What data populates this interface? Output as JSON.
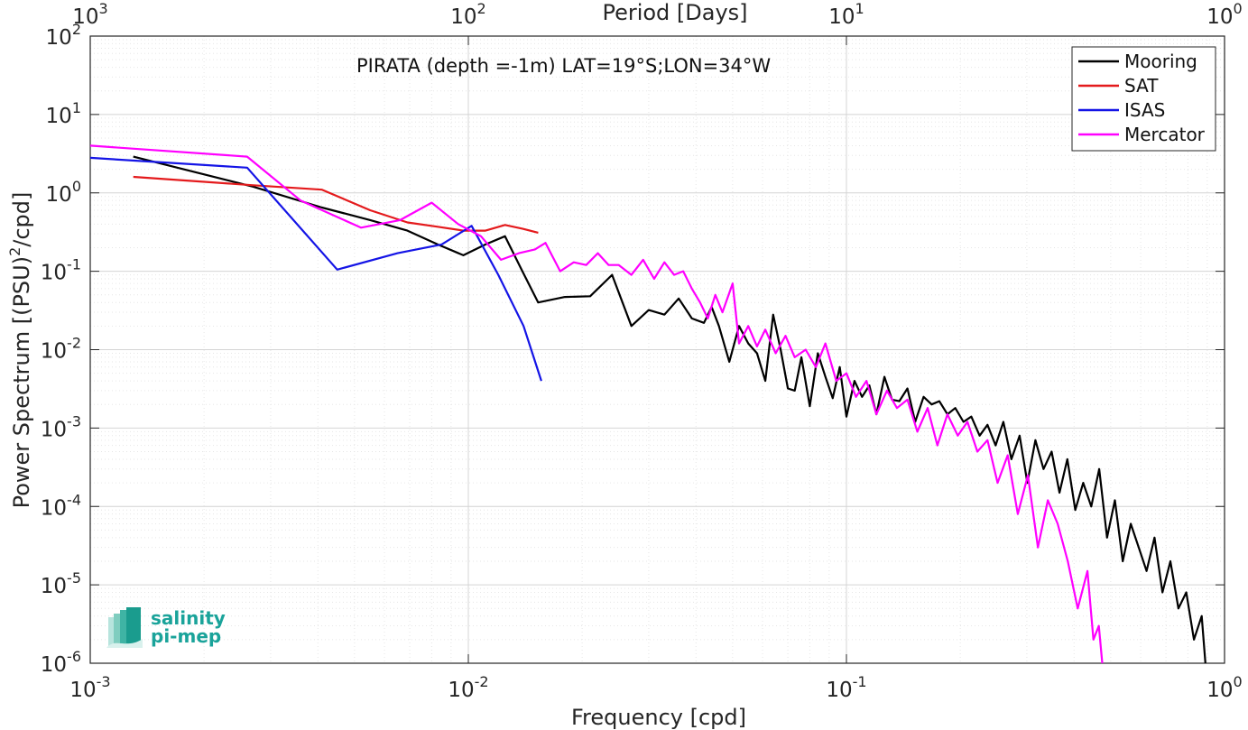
{
  "chart_data": {
    "type": "line",
    "title": "PIRATA (depth =-1m) LAT=19°S;LON=34°W",
    "xlabel": "Frequency [cpd]",
    "ylabel": "Power Spectrum [(PSU)^2/cpd]",
    "top_xlabel": "Period [Days]",
    "xscale": "log",
    "yscale": "log",
    "xlim": [
      0.001,
      1
    ],
    "ylim": [
      1e-06,
      100
    ],
    "grid": true,
    "legend_position": "top-right",
    "x_ticks": [
      {
        "value": 0.001,
        "base": "10",
        "exp": "-3"
      },
      {
        "value": 0.01,
        "base": "10",
        "exp": "-2"
      },
      {
        "value": 0.1,
        "base": "10",
        "exp": "-1"
      },
      {
        "value": 1,
        "base": "10",
        "exp": "0"
      }
    ],
    "top_ticks": [
      {
        "freq": 0.001,
        "base": "10",
        "exp": "3"
      },
      {
        "freq": 0.01,
        "base": "10",
        "exp": "2"
      },
      {
        "freq": 0.1,
        "base": "10",
        "exp": "1"
      },
      {
        "freq": 1,
        "base": "10",
        "exp": "0"
      }
    ],
    "y_ticks": [
      {
        "value": 100,
        "base": "10",
        "exp": "2"
      },
      {
        "value": 10,
        "base": "10",
        "exp": "1"
      },
      {
        "value": 1,
        "base": "10",
        "exp": "0"
      },
      {
        "value": 0.1,
        "base": "10",
        "exp": "-1"
      },
      {
        "value": 0.01,
        "base": "10",
        "exp": "-2"
      },
      {
        "value": 0.001,
        "base": "10",
        "exp": "-3"
      },
      {
        "value": 0.0001,
        "base": "10",
        "exp": "-4"
      },
      {
        "value": 1e-05,
        "base": "10",
        "exp": "-5"
      },
      {
        "value": 1e-06,
        "base": "10",
        "exp": "-6"
      }
    ],
    "series": [
      {
        "name": "Mooring",
        "color": "#000000",
        "x": [
          0.0013,
          0.0027,
          0.0041,
          0.0055,
          0.0069,
          0.0083,
          0.0097,
          0.0111,
          0.0125,
          0.0139,
          0.0153,
          0.018,
          0.021,
          0.024,
          0.027,
          0.03,
          0.033,
          0.036,
          0.039,
          0.042,
          0.044,
          0.046,
          0.049,
          0.052,
          0.055,
          0.058,
          0.061,
          0.064,
          0.067,
          0.07,
          0.073,
          0.076,
          0.08,
          0.084,
          0.088,
          0.092,
          0.096,
          0.1,
          0.105,
          0.11,
          0.115,
          0.12,
          0.126,
          0.132,
          0.138,
          0.145,
          0.152,
          0.16,
          0.168,
          0.176,
          0.185,
          0.194,
          0.204,
          0.214,
          0.225,
          0.236,
          0.248,
          0.26,
          0.273,
          0.287,
          0.301,
          0.316,
          0.332,
          0.349,
          0.366,
          0.384,
          0.403,
          0.423,
          0.444,
          0.466,
          0.489,
          0.513,
          0.538,
          0.565,
          0.593,
          0.622,
          0.653,
          0.685,
          0.719,
          0.755,
          0.792,
          0.83,
          0.87,
          0.89
        ],
        "y": [
          2.9,
          1.2,
          0.65,
          0.45,
          0.33,
          0.22,
          0.16,
          0.22,
          0.28,
          0.1,
          0.04,
          0.047,
          0.048,
          0.09,
          0.02,
          0.032,
          0.028,
          0.045,
          0.025,
          0.022,
          0.035,
          0.02,
          0.007,
          0.02,
          0.012,
          0.009,
          0.004,
          0.028,
          0.01,
          0.0032,
          0.003,
          0.008,
          0.0019,
          0.009,
          0.0045,
          0.0024,
          0.006,
          0.0014,
          0.004,
          0.0025,
          0.0035,
          0.0015,
          0.0045,
          0.0023,
          0.0022,
          0.0032,
          0.0012,
          0.0025,
          0.002,
          0.0022,
          0.0015,
          0.0018,
          0.0012,
          0.0014,
          0.0008,
          0.0011,
          0.0006,
          0.0012,
          0.0004,
          0.0008,
          0.0002,
          0.0007,
          0.0003,
          0.0005,
          0.00015,
          0.0004,
          9e-05,
          0.0002,
          0.0001,
          0.0003,
          4e-05,
          0.00012,
          2e-05,
          6e-05,
          3e-05,
          1.5e-05,
          4e-05,
          8e-06,
          2e-05,
          5e-06,
          8e-06,
          2e-06,
          4e-06,
          1e-06
        ]
      },
      {
        "name": "SAT",
        "color": "#e41a1c",
        "x": [
          0.0013,
          0.0027,
          0.0041,
          0.0055,
          0.0069,
          0.0083,
          0.0097,
          0.0111,
          0.0125,
          0.0139,
          0.0153
        ],
        "y": [
          1.6,
          1.25,
          1.1,
          0.6,
          0.42,
          0.37,
          0.33,
          0.33,
          0.39,
          0.35,
          0.31
        ]
      },
      {
        "name": "ISAS",
        "color": "#1414e6",
        "x": [
          0.001,
          0.0026,
          0.0045,
          0.0065,
          0.0085,
          0.0102,
          0.012,
          0.014,
          0.0156
        ],
        "y": [
          2.8,
          2.1,
          0.105,
          0.17,
          0.22,
          0.38,
          0.09,
          0.02,
          0.004
        ]
      },
      {
        "name": "Mercator",
        "color": "#ff00ff",
        "x": [
          0.001,
          0.0026,
          0.0036,
          0.0052,
          0.0066,
          0.008,
          0.0094,
          0.0108,
          0.0122,
          0.0136,
          0.015,
          0.016,
          0.0175,
          0.019,
          0.0205,
          0.022,
          0.0235,
          0.025,
          0.027,
          0.029,
          0.031,
          0.033,
          0.035,
          0.037,
          0.039,
          0.041,
          0.043,
          0.045,
          0.047,
          0.05,
          0.052,
          0.055,
          0.058,
          0.061,
          0.065,
          0.069,
          0.073,
          0.078,
          0.083,
          0.088,
          0.094,
          0.1,
          0.106,
          0.113,
          0.12,
          0.128,
          0.136,
          0.145,
          0.154,
          0.164,
          0.174,
          0.185,
          0.197,
          0.209,
          0.222,
          0.236,
          0.251,
          0.267,
          0.284,
          0.302,
          0.321,
          0.341,
          0.362,
          0.385,
          0.409,
          0.434,
          0.45,
          0.465,
          0.475
        ],
        "y": [
          4.0,
          2.9,
          0.8,
          0.36,
          0.45,
          0.75,
          0.4,
          0.28,
          0.14,
          0.17,
          0.19,
          0.23,
          0.1,
          0.13,
          0.12,
          0.17,
          0.12,
          0.12,
          0.09,
          0.14,
          0.08,
          0.13,
          0.09,
          0.1,
          0.06,
          0.04,
          0.025,
          0.05,
          0.03,
          0.07,
          0.012,
          0.02,
          0.011,
          0.018,
          0.009,
          0.015,
          0.008,
          0.01,
          0.006,
          0.012,
          0.004,
          0.005,
          0.0025,
          0.004,
          0.0015,
          0.003,
          0.0018,
          0.0023,
          0.0009,
          0.0018,
          0.0006,
          0.0015,
          0.0008,
          0.0012,
          0.0005,
          0.0007,
          0.0002,
          0.00045,
          8e-05,
          0.00025,
          3e-05,
          0.00012,
          6e-05,
          2e-05,
          5e-06,
          1.5e-05,
          2e-06,
          3e-06,
          1e-06
        ]
      }
    ]
  },
  "logo": {
    "line1": "salinity",
    "line2": "pi-mep"
  }
}
